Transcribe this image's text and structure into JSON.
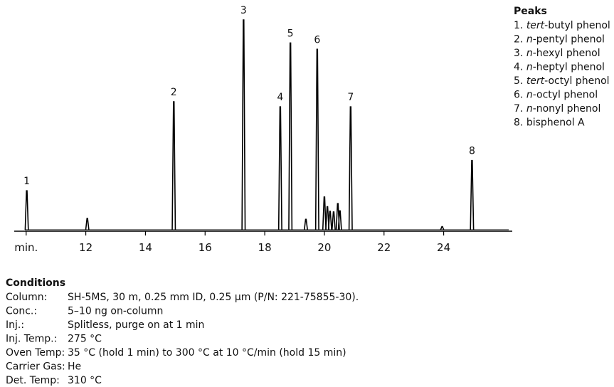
{
  "chart_data": {
    "type": "chromatogram",
    "color": "#000000",
    "xlim": [
      9.6,
      26.3
    ],
    "xticks": [
      {
        "value": 10,
        "label": "min."
      },
      12,
      14,
      16,
      18,
      20,
      22,
      24
    ],
    "ylim": [
      0,
      100
    ],
    "peaks": [
      {
        "label": "1",
        "x": 10.02,
        "y": 18.6
      },
      {
        "label": null,
        "x": 12.05,
        "y": 5.4
      },
      {
        "label": "2",
        "x": 14.95,
        "y": 61
      },
      {
        "label": "3",
        "x": 17.29,
        "y": 100
      },
      {
        "label": "4",
        "x": 18.52,
        "y": 58.6
      },
      {
        "label": "5",
        "x": 18.86,
        "y": 89
      },
      {
        "label": null,
        "x": 19.38,
        "y": 5
      },
      {
        "label": "6",
        "x": 19.76,
        "y": 86
      },
      {
        "label": null,
        "x": 20.0,
        "y": 15.6
      },
      {
        "label": null,
        "x": 20.1,
        "y": 11
      },
      {
        "label": null,
        "x": 20.19,
        "y": 8.8
      },
      {
        "label": null,
        "x": 20.31,
        "y": 8.5
      },
      {
        "label": null,
        "x": 20.45,
        "y": 12.5
      },
      {
        "label": null,
        "x": 20.52,
        "y": 9
      },
      {
        "label": "7",
        "x": 20.88,
        "y": 58.6
      },
      {
        "label": null,
        "x": 23.95,
        "y": 1.5
      },
      {
        "label": "8",
        "x": 24.95,
        "y": 33
      }
    ],
    "legend": {
      "title": "Peaks",
      "entries": [
        {
          "num": "1.",
          "em": "tert",
          "rest": "-butyl phenol"
        },
        {
          "num": "2.",
          "em": "n",
          "rest": "-pentyl phenol"
        },
        {
          "num": "3.",
          "em": "n",
          "rest": "-hexyl phenol"
        },
        {
          "num": "4.",
          "em": "n",
          "rest": "-heptyl phenol"
        },
        {
          "num": "5.",
          "em": "tert",
          "rest": "-octyl phenol"
        },
        {
          "num": "6.",
          "em": "n",
          "rest": "-octyl phenol"
        },
        {
          "num": "7.",
          "em": "n",
          "rest": "-nonyl phenol"
        },
        {
          "num": "8.",
          "rest": "bisphenol A"
        }
      ]
    }
  },
  "conditions": {
    "title": "Conditions",
    "rows": [
      [
        "Column:",
        "SH-5MS, 30 m, 0.25 mm ID, 0.25 µm (P/N: 221-75855-30)."
      ],
      [
        "Conc.:",
        "5–10 ng on-column"
      ],
      [
        "Inj.:",
        "Splitless, purge on at 1 min"
      ],
      [
        "Inj. Temp.:",
        "275 °C"
      ],
      [
        "Oven Temp:",
        "35 °C (hold 1 min) to 300 °C at 10 °C/min (hold 15 min)"
      ],
      [
        "Carrier Gas:",
        "He"
      ],
      [
        "Det. Temp:",
        "310 °C"
      ]
    ]
  }
}
